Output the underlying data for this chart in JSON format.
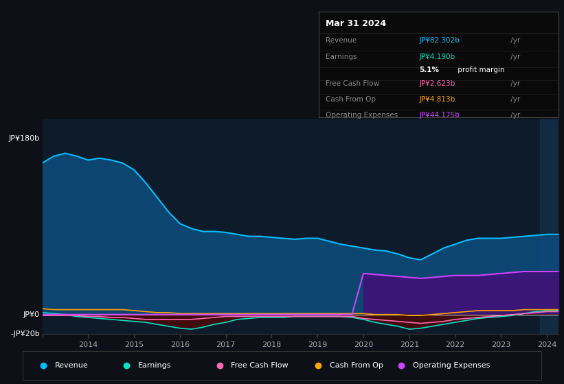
{
  "background_color": "#0d1117",
  "plot_bg_color": "#0d1b2a",
  "grid_color": "#1e3a5f",
  "y_label_top": "JP¥180b",
  "y_label_zero": "JP¥0",
  "y_label_neg": "-JP¥20b",
  "ylim": [
    -20,
    200
  ],
  "years": [
    2013.0,
    2013.25,
    2013.5,
    2013.75,
    2014.0,
    2014.25,
    2014.5,
    2014.75,
    2015.0,
    2015.25,
    2015.5,
    2015.75,
    2016.0,
    2016.25,
    2016.5,
    2016.75,
    2017.0,
    2017.25,
    2017.5,
    2017.75,
    2018.0,
    2018.25,
    2018.5,
    2018.75,
    2019.0,
    2019.25,
    2019.5,
    2019.75,
    2020.0,
    2020.25,
    2020.5,
    2020.75,
    2021.0,
    2021.25,
    2021.5,
    2021.75,
    2022.0,
    2022.25,
    2022.5,
    2022.75,
    2023.0,
    2023.25,
    2023.5,
    2023.75,
    2024.0,
    2024.25
  ],
  "revenue": [
    155,
    162,
    165,
    162,
    158,
    160,
    158,
    155,
    148,
    135,
    120,
    105,
    93,
    88,
    85,
    85,
    84,
    82,
    80,
    80,
    79,
    78,
    77,
    78,
    78,
    75,
    72,
    70,
    68,
    66,
    65,
    62,
    58,
    56,
    62,
    68,
    72,
    76,
    78,
    78,
    78,
    79,
    80,
    81,
    82,
    82
  ],
  "earnings": [
    2,
    1,
    0,
    -2,
    -3,
    -4,
    -5,
    -6,
    -7,
    -8,
    -10,
    -12,
    -14,
    -15,
    -13,
    -10,
    -8,
    -5,
    -4,
    -3,
    -3,
    -3,
    -2,
    -2,
    -2,
    -2,
    -2,
    -3,
    -5,
    -8,
    -10,
    -12,
    -15,
    -14,
    -12,
    -10,
    -8,
    -6,
    -4,
    -3,
    -2,
    -1,
    1,
    3,
    4,
    4
  ],
  "free_cash_flow": [
    -1,
    -1,
    -1,
    -1,
    -2,
    -2,
    -3,
    -3,
    -4,
    -5,
    -5,
    -5,
    -5,
    -5,
    -4,
    -3,
    -2,
    -2,
    -2,
    -2,
    -2,
    -2,
    -2,
    -2,
    -2,
    -2,
    -2,
    -2,
    -4,
    -5,
    -6,
    -7,
    -8,
    -9,
    -8,
    -7,
    -5,
    -4,
    -3,
    -2,
    -1,
    0,
    1,
    2,
    3,
    3
  ],
  "cash_from_op": [
    6,
    5,
    5,
    5,
    5,
    5,
    5,
    5,
    4,
    3,
    2,
    2,
    1,
    1,
    1,
    1,
    1,
    1,
    1,
    1,
    1,
    1,
    1,
    1,
    1,
    1,
    1,
    1,
    1,
    0,
    0,
    0,
    -1,
    -1,
    0,
    1,
    2,
    3,
    4,
    4,
    4,
    4,
    5,
    5,
    5,
    5
  ],
  "operating_expenses": [
    0,
    0,
    0,
    0,
    0,
    0,
    0,
    0,
    0,
    0,
    0,
    0,
    0,
    0,
    0,
    0,
    0,
    0,
    0,
    0,
    0,
    0,
    0,
    0,
    0,
    0,
    0,
    0,
    42,
    41,
    40,
    39,
    38,
    37,
    38,
    39,
    40,
    40,
    40,
    41,
    42,
    43,
    44,
    44,
    44,
    44
  ],
  "colors": {
    "revenue": "#00bfff",
    "revenue_fill": "#0d4a7a",
    "earnings": "#00e5cc",
    "earnings_fill": "#4a0a0a",
    "free_cash_flow": "#ff69b4",
    "cash_from_op": "#ffa500",
    "operating_expenses": "#cc44ff",
    "operating_expenses_fill": "#3d1478"
  },
  "tooltip": {
    "title": "Mar 31 2024",
    "rows": [
      {
        "label": "Revenue",
        "value": "JP¥82.302b",
        "color": "#00bfff",
        "extra": null
      },
      {
        "label": "Earnings",
        "value": "JP¥4.190b",
        "color": "#00e5cc",
        "extra": null
      },
      {
        "label": "",
        "value": "5.1%",
        "color": "white",
        "extra": " profit margin"
      },
      {
        "label": "Free Cash Flow",
        "value": "JP¥2.623b",
        "color": "#ff69b4",
        "extra": null
      },
      {
        "label": "Cash From Op",
        "value": "JP¥4.813b",
        "color": "#ffa500",
        "extra": null
      },
      {
        "label": "Operating Expenses",
        "value": "JP¥44.175b",
        "color": "#cc44ff",
        "extra": null
      }
    ]
  },
  "legend_items": [
    {
      "label": "Revenue",
      "color": "#00bfff"
    },
    {
      "label": "Earnings",
      "color": "#00e5cc"
    },
    {
      "label": "Free Cash Flow",
      "color": "#ff69b4"
    },
    {
      "label": "Cash From Op",
      "color": "#ffa500"
    },
    {
      "label": "Operating Expenses",
      "color": "#cc44ff"
    }
  ],
  "xticks": [
    2013,
    2014,
    2015,
    2016,
    2017,
    2018,
    2019,
    2020,
    2021,
    2022,
    2023,
    2024
  ],
  "xtick_labels": [
    "",
    "2014",
    "2015",
    "2016",
    "2017",
    "2018",
    "2019",
    "2020",
    "2021",
    "2022",
    "2023",
    "2024"
  ]
}
